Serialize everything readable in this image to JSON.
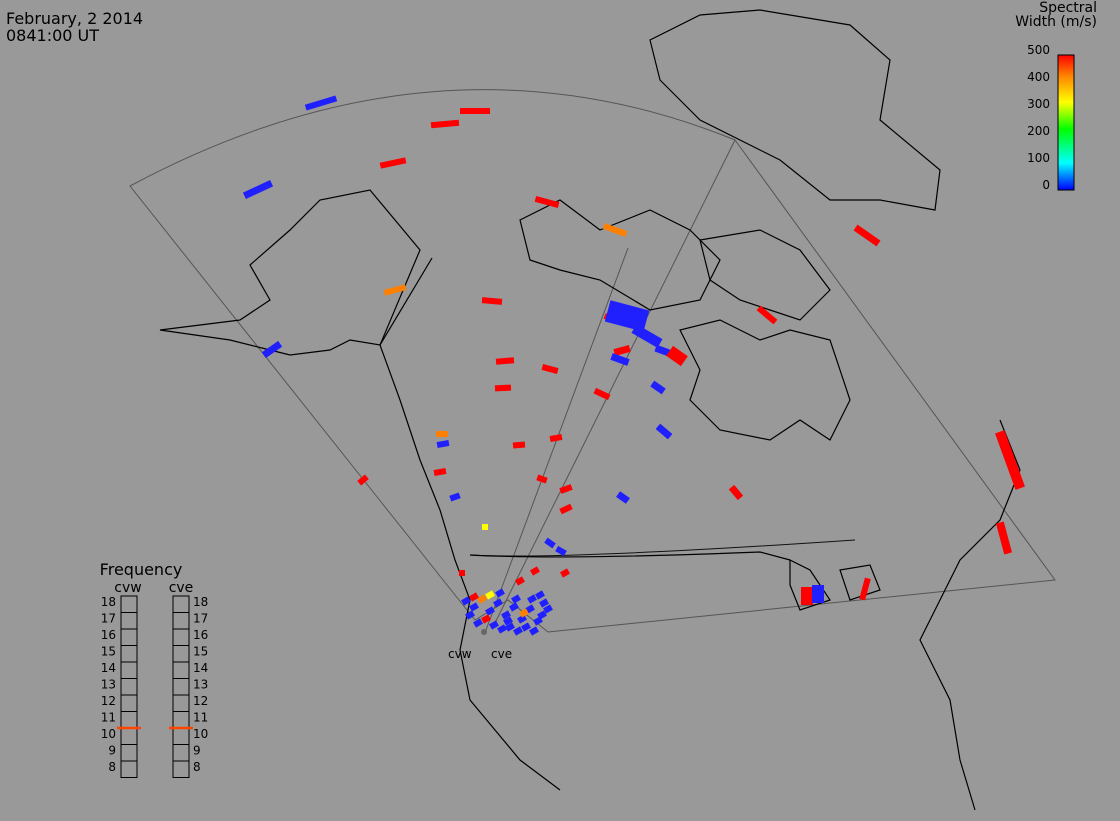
{
  "header": {
    "date": "February, 2 2014",
    "time": "0841:00 UT"
  },
  "colorbar": {
    "title_line1": "Spectral",
    "title_line2": "Width (m/s)",
    "ticks": [
      "500",
      "400",
      "300",
      "200",
      "100",
      "0"
    ],
    "colors": [
      "#ff0000",
      "#ff8000",
      "#ffff00",
      "#00ff00",
      "#00ffff",
      "#0000ff"
    ]
  },
  "frequency_panel": {
    "title": "Frequency",
    "left_label": "cvw",
    "right_label": "cve",
    "ticks": [
      "18",
      "17",
      "16",
      "15",
      "14",
      "13",
      "12",
      "11",
      "10",
      "9",
      "8"
    ],
    "cvw_marker": 10.5,
    "cve_marker": 10.5,
    "marker_color": "#ff4400"
  },
  "radars": {
    "west_label": "cvw",
    "east_label": "cve"
  },
  "palette": {
    "background": "#999999",
    "red": "#ff0000",
    "orange": "#ff8000",
    "yellow": "#ffff00",
    "blue": "#2020ff"
  }
}
